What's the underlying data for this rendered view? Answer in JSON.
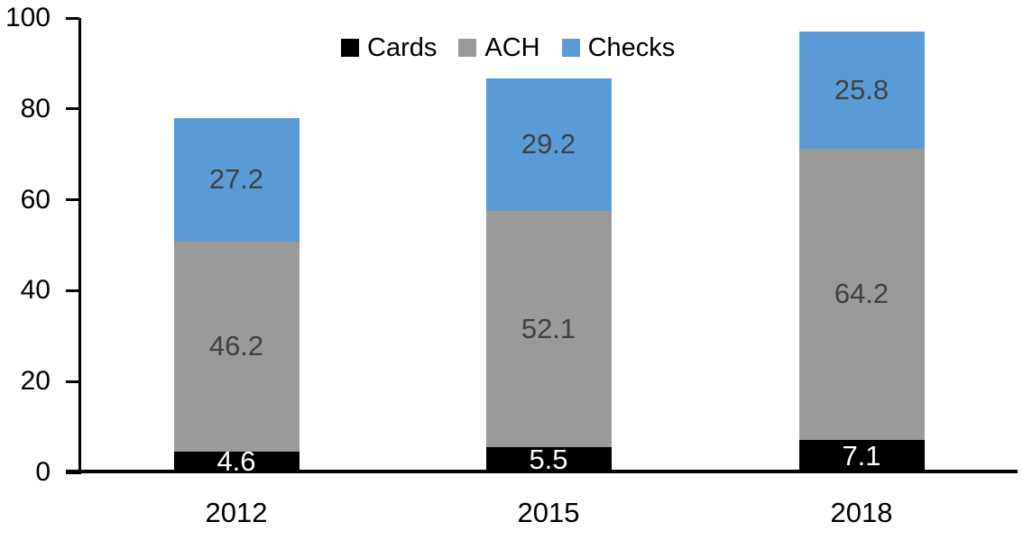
{
  "chart_data": {
    "type": "bar",
    "stacked": true,
    "title": "",
    "xlabel": "",
    "ylabel": "",
    "categories": [
      "2012",
      "2015",
      "2018"
    ],
    "series": [
      {
        "name": "Cards",
        "values": [
          4.6,
          5.5,
          7.1
        ],
        "color": "#000000",
        "label_color": "#ffffff"
      },
      {
        "name": "ACH",
        "values": [
          46.2,
          52.1,
          64.2
        ],
        "color": "#9A9A9A",
        "label_color": "#404040"
      },
      {
        "name": "Checks",
        "values": [
          27.2,
          29.2,
          25.8
        ],
        "color": "#5B9BD5",
        "label_color": "#404040"
      }
    ],
    "totals": [
      78.0,
      86.8,
      97.1
    ],
    "ylim": [
      0,
      100
    ],
    "yticks": [
      0,
      20,
      40,
      60,
      80,
      100
    ],
    "grid": false,
    "legend_position": "top-center",
    "axis_color": "#000000",
    "background_color": "#ffffff"
  }
}
